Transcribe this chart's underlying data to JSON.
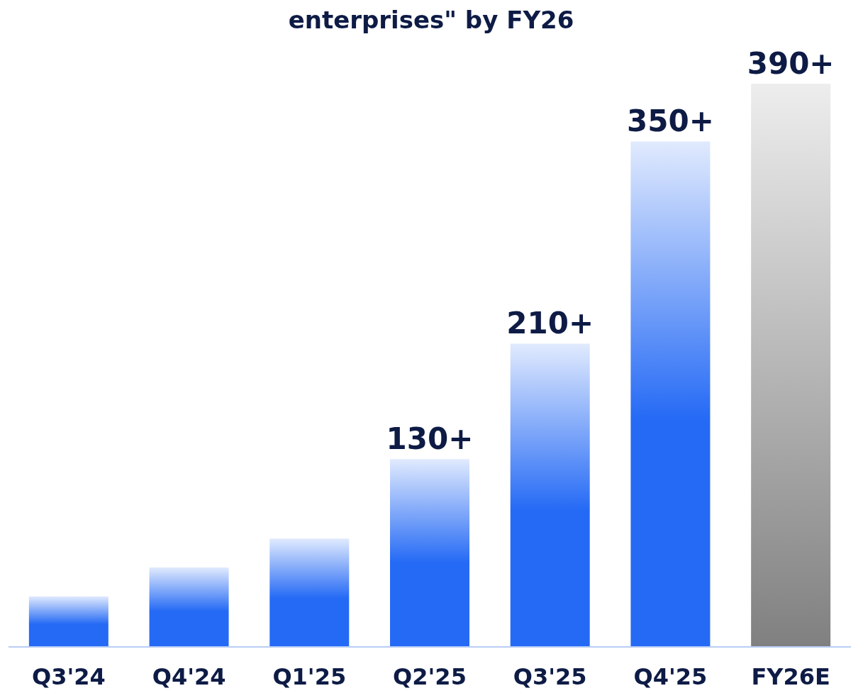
{
  "chart_data": {
    "type": "bar",
    "title": "enterprises\" by FY26",
    "categories": [
      "Q3'24",
      "Q4'24",
      "Q1'25",
      "Q2'25",
      "Q3'25",
      "Q4'25",
      "FY26E"
    ],
    "values": [
      35,
      55,
      75,
      130,
      210,
      350,
      390
    ],
    "value_labels": [
      null,
      null,
      null,
      "130+",
      "210+",
      "350+",
      "390+"
    ],
    "colors": [
      "#256af5",
      "#256af5",
      "#256af5",
      "#256af5",
      "#256af5",
      "#256af5",
      "#808080"
    ]
  }
}
